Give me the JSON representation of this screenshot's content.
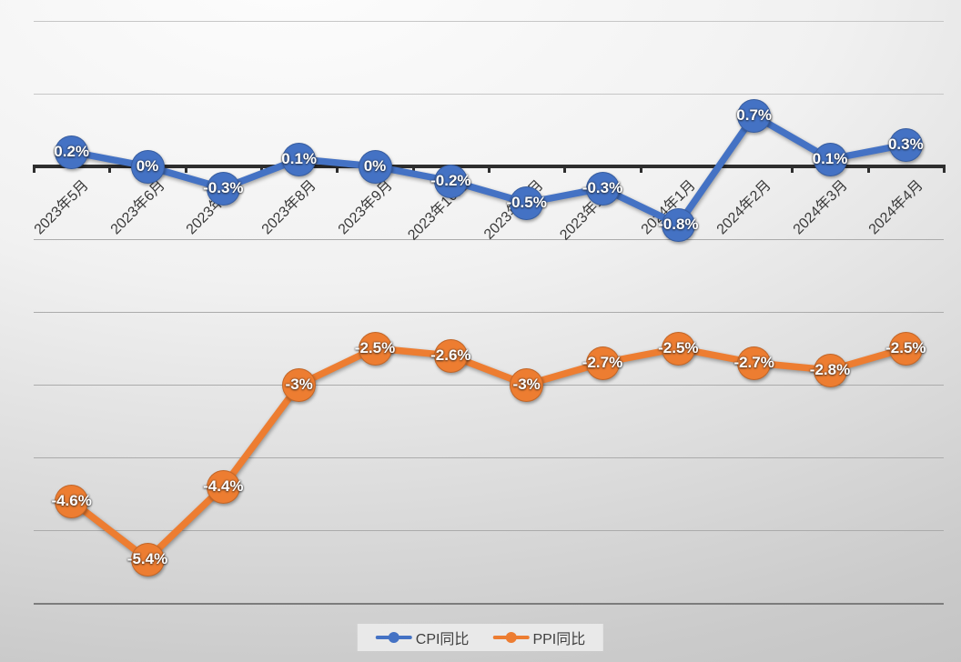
{
  "chart_data": {
    "type": "line",
    "categories": [
      "2023年5月",
      "2023年6月",
      "2023年7月",
      "2023年8月",
      "2023年9月",
      "2023年10月",
      "2023年11月",
      "2023年12月",
      "2024年1月",
      "2024年2月",
      "2024年3月",
      "2024年4月"
    ],
    "series": [
      {
        "name": "CPI同比",
        "color": "#4472C4",
        "values": [
          0.2,
          0,
          -0.3,
          0.1,
          0,
          -0.2,
          -0.5,
          -0.3,
          -0.8,
          0.7,
          0.1,
          0.3
        ],
        "labels": [
          "0.2%",
          "0%",
          "-0.3%",
          "0.1%",
          "0%",
          "-0.2%",
          "-0.5%",
          "-0.3%",
          "-0.8%",
          "0.7%",
          "0.1%",
          "0.3%"
        ]
      },
      {
        "name": "PPI同比",
        "color": "#ED7D31",
        "values": [
          -4.6,
          -5.4,
          -4.4,
          -3,
          -2.5,
          -2.6,
          -3,
          -2.7,
          -2.5,
          -2.7,
          -2.8,
          -2.5
        ],
        "labels": [
          "-4.6%",
          "-5.4%",
          "-4.4%",
          "-3%",
          "-2.5%",
          "-2.6%",
          "-3%",
          "-2.7%",
          "-2.5%",
          "-2.7%",
          "-2.8%",
          "-2.5%"
        ]
      }
    ],
    "title": "",
    "xlabel": "",
    "ylabel": "",
    "ylim": [
      -6,
      2
    ],
    "gridline_interval": 1,
    "grid": true,
    "legend_position": "bottom",
    "data_labels": "shown on points, white bold"
  },
  "legend": {
    "items": [
      {
        "label": "CPI同比",
        "color": "#4472C4"
      },
      {
        "label": "PPI同比",
        "color": "#ED7D31"
      }
    ]
  }
}
